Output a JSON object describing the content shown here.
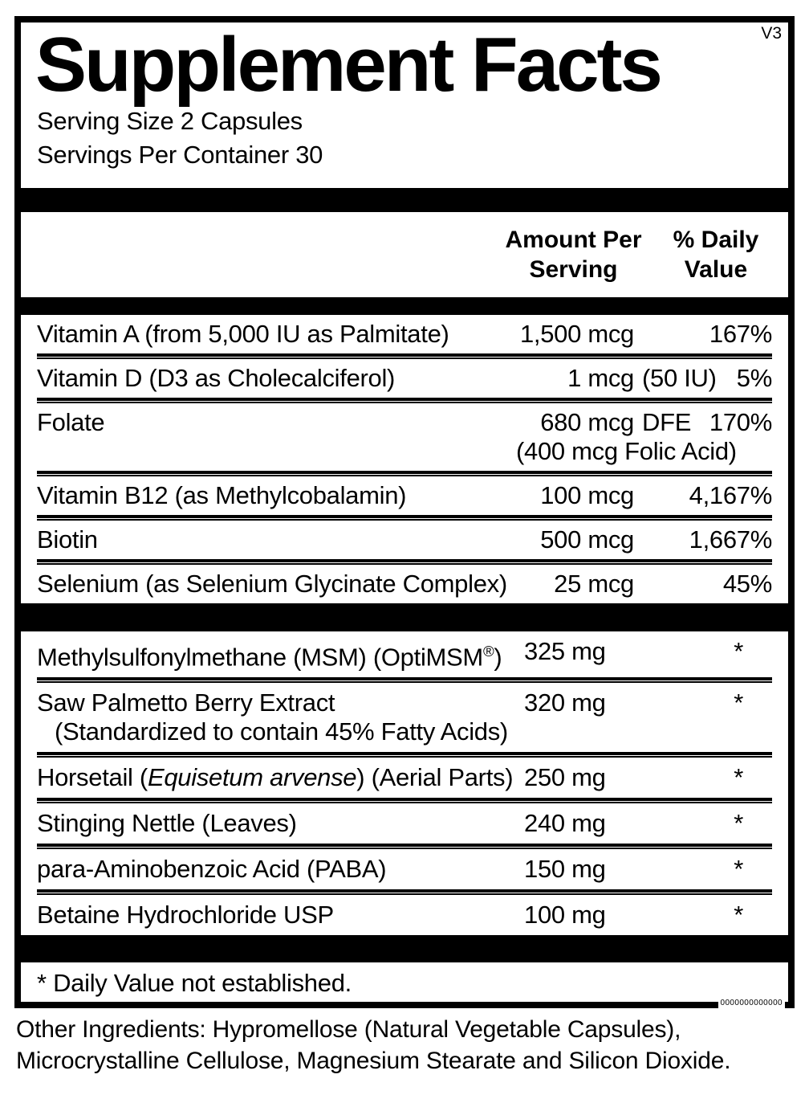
{
  "version_tag": "V3",
  "title": "Supplement Facts",
  "serving": {
    "size": "Serving Size 2 Capsules",
    "per_container": "Servings Per Container 30"
  },
  "header": {
    "amount": "Amount Per Serving",
    "dv": "% Daily Value"
  },
  "table": {
    "section1": {
      "rows": [
        {
          "name": "Vitamin A (from 5,000 IU as Palmitate)",
          "amount": "1,500 mcg",
          "dv": "167%"
        },
        {
          "name": "Vitamin D (D3 as Cholecalciferol)",
          "amount": "1 mcg",
          "amount_suffix": "(50 IU)",
          "dv": "5%"
        },
        {
          "name": "Folate",
          "amount": "680 mcg",
          "amount_suffix": "DFE",
          "amount_line2": "(400 mcg Folic Acid)",
          "dv": "170%"
        },
        {
          "name": "Vitamin B12 (as Methylcobalamin)",
          "amount": "100 mcg",
          "dv": "4,167%"
        },
        {
          "name": "Biotin",
          "amount": "500 mcg",
          "dv": "1,667%"
        },
        {
          "name": "Selenium (as Selenium Glycinate Complex)",
          "amount": "25 mcg",
          "dv": "45%"
        }
      ]
    },
    "section2": {
      "rows": [
        {
          "name_pre": "Methylsulfonylmethane (MSM) (OptiMSM",
          "name_sup": "®",
          "name_post": ")",
          "amount": "325 mg",
          "dv": "*"
        },
        {
          "name": "Saw Palmetto Berry Extract",
          "name_line2": "(Standardized to contain 45% Fatty Acids)",
          "amount": "320 mg",
          "dv": "*"
        },
        {
          "name_pre": "Horsetail (",
          "name_italic": "Equisetum arvense",
          "name_post": ") (Aerial Parts)",
          "amount": "250 mg",
          "dv": "*"
        },
        {
          "name": "Stinging Nettle (Leaves)",
          "amount": "240 mg",
          "dv": "*"
        },
        {
          "name": "para-Aminobenzoic Acid (PABA)",
          "amount": "150 mg",
          "dv": "*"
        },
        {
          "name": "Betaine Hydrochloride USP",
          "amount": "100 mg",
          "dv": "*"
        }
      ]
    }
  },
  "footnote": "* Daily Value not established.",
  "bottom_code": "0000000000000",
  "other_ingredients": {
    "line1": "Other Ingredients: Hypromellose (Natural Vegetable Capsules),",
    "line2": "Microcrystalline Cellulose, Magnesium Stearate and Silicon Dioxide."
  }
}
